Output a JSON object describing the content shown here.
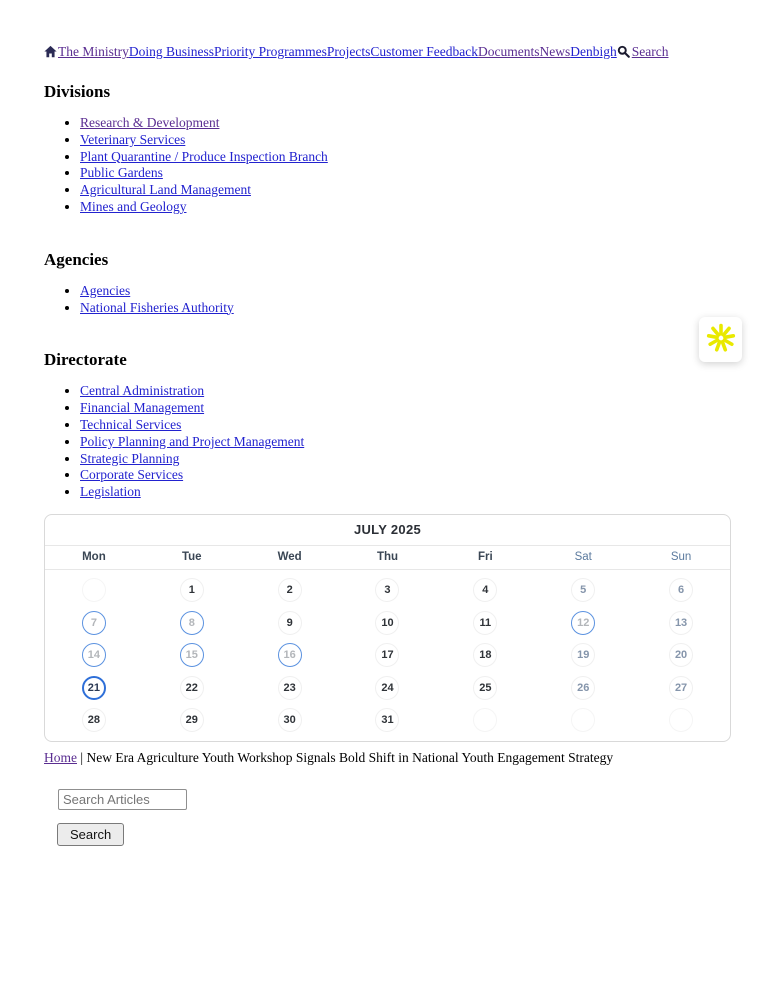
{
  "colors": {
    "link_blue": "#2222cf",
    "link_visited_purple": "#5a2d91",
    "calendar_event_ring": "#5b92e0",
    "calendar_today_ring": "#2e6fd8",
    "widget_yellow": "#e9e900"
  },
  "nav": {
    "home_icon": "house-icon",
    "links": [
      {
        "label": "The Ministry",
        "visited": true
      },
      {
        "label": "Doing Business",
        "visited": false
      },
      {
        "label": "Priority Programmes",
        "visited": false
      },
      {
        "label": "Projects",
        "visited": false
      },
      {
        "label": "Customer Feedback",
        "visited": false
      },
      {
        "label": "Documents",
        "visited": true
      },
      {
        "label": "News",
        "visited": true
      },
      {
        "label": "Denbigh",
        "visited": false
      }
    ],
    "search": {
      "icon": "search-icon",
      "label": "Search",
      "visited": true
    }
  },
  "sections": [
    {
      "title": "Divisions",
      "links": [
        {
          "label": "Research & Development",
          "visited": true
        },
        {
          "label": "Veterinary Services",
          "visited": false
        },
        {
          "label": "Plant Quarantine / Produce Inspection Branch",
          "visited": false
        },
        {
          "label": "Public Gardens",
          "visited": false
        },
        {
          "label": "Agricultural Land Management",
          "visited": false
        },
        {
          "label": "Mines and Geology",
          "visited": false
        }
      ]
    },
    {
      "title": "Agencies",
      "links": [
        {
          "label": "Agencies",
          "visited": false
        },
        {
          "label": "National Fisheries Authority",
          "visited": false
        }
      ]
    },
    {
      "title": "Directorate",
      "links": [
        {
          "label": "Central Administration",
          "visited": false
        },
        {
          "label": "Financial Management",
          "visited": false
        },
        {
          "label": "Technical Services",
          "visited": false
        },
        {
          "label": "Policy Planning and Project Management",
          "visited": false
        },
        {
          "label": "Strategic Planning",
          "visited": false
        },
        {
          "label": "Corporate Services",
          "visited": false
        },
        {
          "label": "Legislation",
          "visited": false
        }
      ]
    }
  ],
  "calendar": {
    "title": "JULY 2025",
    "weekdays": [
      "Mon",
      "Tue",
      "Wed",
      "Thu",
      "Fri",
      "Sat",
      "Sun"
    ],
    "weekend_indexes": [
      5,
      6
    ],
    "weeks": [
      [
        {
          "day": "",
          "state": "empty"
        },
        {
          "day": "1",
          "state": "normal"
        },
        {
          "day": "2",
          "state": "normal"
        },
        {
          "day": "3",
          "state": "normal"
        },
        {
          "day": "4",
          "state": "normal"
        },
        {
          "day": "5",
          "state": "weekend"
        },
        {
          "day": "6",
          "state": "weekend"
        }
      ],
      [
        {
          "day": "7",
          "state": "event"
        },
        {
          "day": "8",
          "state": "event"
        },
        {
          "day": "9",
          "state": "normal"
        },
        {
          "day": "10",
          "state": "normal"
        },
        {
          "day": "11",
          "state": "normal"
        },
        {
          "day": "12",
          "state": "event"
        },
        {
          "day": "13",
          "state": "weekend"
        }
      ],
      [
        {
          "day": "14",
          "state": "event"
        },
        {
          "day": "15",
          "state": "event"
        },
        {
          "day": "16",
          "state": "event"
        },
        {
          "day": "17",
          "state": "normal"
        },
        {
          "day": "18",
          "state": "normal"
        },
        {
          "day": "19",
          "state": "weekend"
        },
        {
          "day": "20",
          "state": "weekend"
        }
      ],
      [
        {
          "day": "21",
          "state": "today"
        },
        {
          "day": "22",
          "state": "normal"
        },
        {
          "day": "23",
          "state": "normal"
        },
        {
          "day": "24",
          "state": "normal"
        },
        {
          "day": "25",
          "state": "normal"
        },
        {
          "day": "26",
          "state": "weekend"
        },
        {
          "day": "27",
          "state": "weekend"
        }
      ],
      [
        {
          "day": "28",
          "state": "normal"
        },
        {
          "day": "29",
          "state": "normal"
        },
        {
          "day": "30",
          "state": "normal"
        },
        {
          "day": "31",
          "state": "normal"
        },
        {
          "day": "",
          "state": "empty"
        },
        {
          "day": "",
          "state": "empty"
        },
        {
          "day": "",
          "state": "empty"
        }
      ]
    ]
  },
  "breadcrumb": {
    "home_label": "Home",
    "separator": "|",
    "article_title": "New Era Agriculture Youth Workshop Signals Bold Shift in National Youth Engagement Strategy"
  },
  "article_search": {
    "placeholder": "Search Articles",
    "button_label": "Search"
  },
  "accessibility_widget": {
    "icon": "asterisk-icon"
  }
}
